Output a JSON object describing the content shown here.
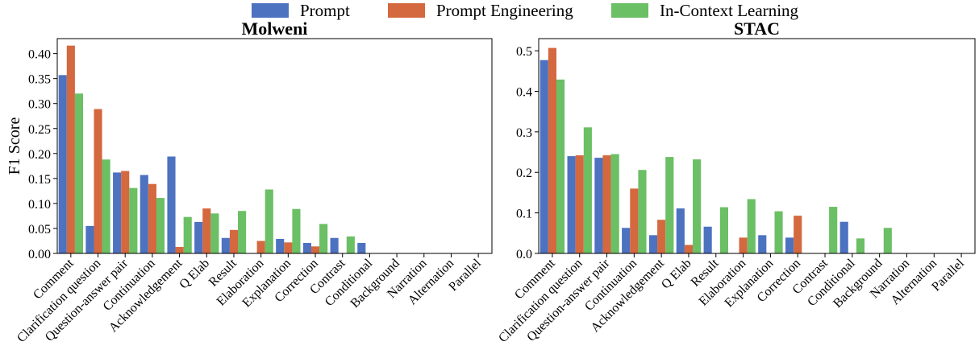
{
  "colors": {
    "prompt": "#4C72C0",
    "prompt_engineering": "#D4683E",
    "in_context_learning": "#6BBF64"
  },
  "legend": {
    "prompt_label": "Prompt",
    "prompt_engineering_label": "Prompt Engineering",
    "icl_label": "In-Context Learning",
    "placement": "top-center"
  },
  "chart_data": [
    {
      "type": "bar",
      "title": "Molweni",
      "ylabel": "F1 Score",
      "xlabel": "",
      "ylim": [
        0,
        0.43
      ],
      "yticks": [
        "0.00",
        "0.05",
        "0.10",
        "0.15",
        "0.20",
        "0.25",
        "0.30",
        "0.35",
        "0.40"
      ],
      "grid": false,
      "categories": [
        "Comment",
        "Clarification question",
        "Question-answer pair",
        "Continuation",
        "Acknowledgement",
        "Q Elab",
        "Result",
        "Elaboration",
        "Explanation",
        "Correction",
        "Contrast",
        "Conditional",
        "Background",
        "Narration",
        "Alternation",
        "Parallel"
      ],
      "series": [
        {
          "name": "Prompt",
          "values": [
            0.357,
            0.055,
            0.162,
            0.157,
            0.194,
            0.063,
            0.031,
            0.0,
            0.029,
            0.021,
            0.031,
            0.021,
            0,
            0,
            0,
            0
          ]
        },
        {
          "name": "Prompt Engineering",
          "values": [
            0.416,
            0.289,
            0.165,
            0.139,
            0.013,
            0.09,
            0.047,
            0.025,
            0.022,
            0.014,
            0,
            0,
            0,
            0,
            0,
            0
          ]
        },
        {
          "name": "In-Context Learning",
          "values": [
            0.32,
            0.188,
            0.131,
            0.111,
            0.073,
            0.08,
            0.085,
            0.128,
            0.089,
            0.059,
            0.034,
            0,
            0,
            0,
            0,
            0
          ]
        }
      ]
    },
    {
      "type": "bar",
      "title": "STAC",
      "ylabel": "",
      "xlabel": "",
      "ylim": [
        0,
        0.53
      ],
      "yticks": [
        "0.0",
        "0.1",
        "0.2",
        "0.3",
        "0.4",
        "0.5"
      ],
      "grid": false,
      "categories": [
        "Comment",
        "Clarification question",
        "Question-answer pair",
        "Continuation",
        "Acknowledgement",
        "Q Elab",
        "Result",
        "Elaboration",
        "Explanation",
        "Correction",
        "Contrast",
        "Conditional",
        "Background",
        "Narration",
        "Alternation",
        "Parallel"
      ],
      "series": [
        {
          "name": "Prompt",
          "values": [
            0.477,
            0.24,
            0.236,
            0.063,
            0.045,
            0.111,
            0.066,
            0,
            0.045,
            0.039,
            0,
            0.078,
            0,
            0,
            0,
            0
          ]
        },
        {
          "name": "Prompt Engineering",
          "values": [
            0.507,
            0.242,
            0.242,
            0.16,
            0.083,
            0.021,
            0,
            0.039,
            0,
            0.093,
            0,
            0,
            0,
            0,
            0,
            0
          ]
        },
        {
          "name": "In-Context Learning",
          "values": [
            0.429,
            0.311,
            0.245,
            0.206,
            0.238,
            0.232,
            0.114,
            0.134,
            0.104,
            0,
            0.115,
            0.037,
            0.063,
            0,
            0,
            0
          ]
        }
      ]
    }
  ]
}
